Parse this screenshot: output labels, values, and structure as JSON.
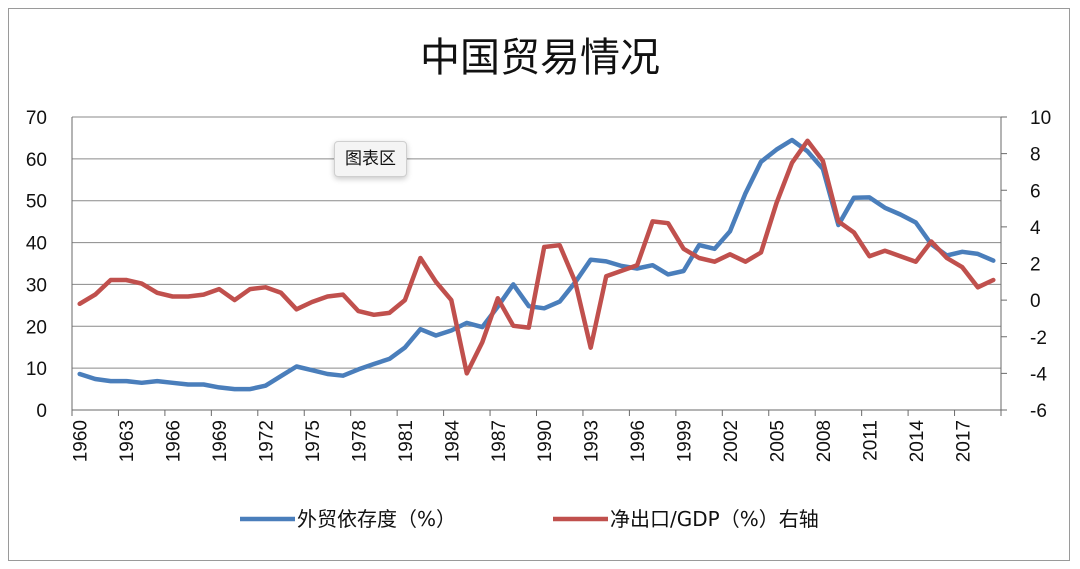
{
  "chart_data": {
    "type": "line",
    "title": "中国贸易情况",
    "years": [
      1960,
      1961,
      1962,
      1963,
      1964,
      1965,
      1966,
      1967,
      1968,
      1969,
      1970,
      1971,
      1972,
      1973,
      1974,
      1975,
      1976,
      1977,
      1978,
      1979,
      1980,
      1981,
      1982,
      1983,
      1984,
      1985,
      1986,
      1987,
      1988,
      1989,
      1990,
      1991,
      1992,
      1993,
      1994,
      1995,
      1996,
      1997,
      1998,
      1999,
      2000,
      2001,
      2002,
      2003,
      2004,
      2005,
      2006,
      2007,
      2008,
      2009,
      2010,
      2011,
      2012,
      2013,
      2014,
      2015,
      2016,
      2017,
      2018,
      2019
    ],
    "x_tick_labels": [
      "1960",
      "1963",
      "1966",
      "1969",
      "1972",
      "1975",
      "1978",
      "1981",
      "1984",
      "1987",
      "1990",
      "1993",
      "1996",
      "1999",
      "2002",
      "2005",
      "2008",
      "2011",
      "2014",
      "2017"
    ],
    "y_left": {
      "min": 0,
      "max": 70,
      "step": 10,
      "ticks": [
        "0",
        "10",
        "20",
        "30",
        "40",
        "50",
        "60",
        "70"
      ]
    },
    "y_right": {
      "min": -6,
      "max": 10,
      "step": 2,
      "ticks": [
        "-6",
        "-4",
        "-2",
        "0",
        "2",
        "4",
        "6",
        "8",
        "10"
      ]
    },
    "grid": true,
    "legend_position": "bottom",
    "series": [
      {
        "name": "外贸依存度（%）",
        "axis": "left",
        "color": "#4a7ebb",
        "values": [
          8.6,
          7.4,
          6.9,
          6.9,
          6.5,
          6.9,
          6.5,
          6.1,
          6.1,
          5.4,
          5.0,
          5.0,
          5.8,
          8.1,
          10.4,
          9.5,
          8.6,
          8.2,
          9.7,
          11.0,
          12.2,
          14.9,
          19.3,
          17.8,
          19.0,
          20.8,
          19.8,
          24.7,
          30.0,
          24.8,
          24.3,
          25.9,
          30.5,
          35.9,
          35.5,
          34.4,
          33.8,
          34.6,
          32.4,
          33.2,
          39.4,
          38.5,
          42.7,
          51.8,
          59.3,
          62.2,
          64.5,
          61.8,
          57.6,
          44.2,
          50.7,
          50.8,
          48.3,
          46.7,
          44.8,
          39.6,
          36.9,
          37.8,
          37.3,
          35.7
        ]
      },
      {
        "name": "净出口/GDP（%）右轴",
        "axis": "right",
        "color": "#c0504d",
        "values": [
          -0.2,
          0.3,
          1.1,
          1.1,
          0.9,
          0.4,
          0.2,
          0.2,
          0.3,
          0.6,
          0.0,
          0.6,
          0.7,
          0.4,
          -0.5,
          -0.1,
          0.2,
          0.3,
          -0.6,
          -0.8,
          -0.7,
          0.0,
          2.3,
          1.0,
          0.0,
          -4.0,
          -2.3,
          0.1,
          -1.4,
          -1.5,
          2.9,
          3.0,
          1.0,
          -2.6,
          1.3,
          1.6,
          1.9,
          4.3,
          4.2,
          2.8,
          2.3,
          2.1,
          2.5,
          2.1,
          2.6,
          5.3,
          7.5,
          8.7,
          7.6,
          4.3,
          3.7,
          2.4,
          2.7,
          2.4,
          2.1,
          3.2,
          2.3,
          1.8,
          0.7,
          1.1
        ]
      }
    ]
  },
  "ui": {
    "tooltip_text": "图表区"
  }
}
